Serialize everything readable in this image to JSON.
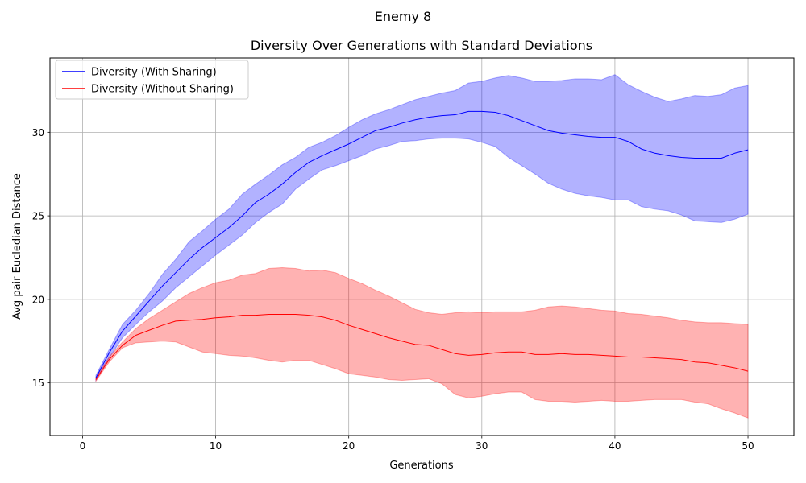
{
  "chart_data": {
    "type": "line",
    "suptitle": "Enemy 8",
    "title": "Diversity Over Generations with Standard Deviations",
    "xlabel": "Generations",
    "ylabel": "Avg pair Eucledian Distance",
    "xlim": [
      -2.45,
      53.45
    ],
    "ylim": [
      11.85,
      34.45
    ],
    "xticks": [
      0,
      10,
      20,
      30,
      40,
      50
    ],
    "yticks": [
      15,
      20,
      25,
      30
    ],
    "grid": true,
    "legend_position": "top-left",
    "x": [
      1,
      2,
      3,
      4,
      5,
      6,
      7,
      8,
      9,
      10,
      11,
      12,
      13,
      14,
      15,
      16,
      17,
      18,
      19,
      20,
      21,
      22,
      23,
      24,
      25,
      26,
      27,
      28,
      29,
      30,
      31,
      32,
      33,
      34,
      35,
      36,
      37,
      38,
      39,
      40,
      41,
      42,
      43,
      44,
      45,
      46,
      47,
      48,
      49,
      50
    ],
    "series": [
      {
        "name": "Diversity (With Sharing)",
        "color": "#0000ff",
        "fill_color": "#0000ff",
        "fill_opacity": 0.3,
        "mean": [
          15.3,
          16.8,
          18.1,
          19.0,
          19.9,
          20.8,
          21.6,
          22.4,
          23.1,
          23.7,
          24.3,
          25.0,
          25.8,
          26.3,
          26.9,
          27.6,
          28.2,
          28.6,
          28.95,
          29.3,
          29.7,
          30.1,
          30.3,
          30.55,
          30.75,
          30.9,
          31.0,
          31.05,
          31.25,
          31.25,
          31.2,
          31.0,
          30.7,
          30.4,
          30.1,
          29.95,
          29.85,
          29.75,
          29.7,
          29.7,
          29.45,
          29.0,
          28.75,
          28.6,
          28.5,
          28.45,
          28.45,
          28.45,
          28.75,
          28.95
        ],
        "upper": [
          15.45,
          17.0,
          18.5,
          19.35,
          20.35,
          21.5,
          22.4,
          23.45,
          24.1,
          24.8,
          25.4,
          26.3,
          26.9,
          27.45,
          28.05,
          28.5,
          29.1,
          29.4,
          29.8,
          30.3,
          30.75,
          31.1,
          31.35,
          31.65,
          31.95,
          32.15,
          32.35,
          32.5,
          32.95,
          33.05,
          33.25,
          33.4,
          33.25,
          33.05,
          33.05,
          33.1,
          33.2,
          33.2,
          33.15,
          33.45,
          32.85,
          32.45,
          32.1,
          31.85,
          32.0,
          32.2,
          32.15,
          32.25,
          32.65,
          32.8
        ],
        "lower": [
          15.15,
          16.5,
          17.7,
          18.5,
          19.25,
          19.9,
          20.7,
          21.35,
          22.0,
          22.65,
          23.25,
          23.85,
          24.6,
          25.2,
          25.7,
          26.6,
          27.2,
          27.75,
          28.0,
          28.3,
          28.6,
          29.0,
          29.2,
          29.45,
          29.5,
          29.6,
          29.65,
          29.65,
          29.6,
          29.4,
          29.15,
          28.5,
          28.0,
          27.5,
          26.95,
          26.6,
          26.35,
          26.2,
          26.1,
          25.95,
          25.95,
          25.55,
          25.4,
          25.3,
          25.05,
          24.7,
          24.65,
          24.6,
          24.8,
          25.1
        ]
      },
      {
        "name": "Diversity (Without Sharing)",
        "color": "#ff0000",
        "fill_color": "#ff0000",
        "fill_opacity": 0.3,
        "mean": [
          15.2,
          16.4,
          17.25,
          17.85,
          18.15,
          18.45,
          18.7,
          18.75,
          18.8,
          18.9,
          18.95,
          19.05,
          19.05,
          19.1,
          19.1,
          19.1,
          19.05,
          18.95,
          18.75,
          18.45,
          18.2,
          17.95,
          17.7,
          17.5,
          17.3,
          17.25,
          17.0,
          16.75,
          16.65,
          16.7,
          16.8,
          16.85,
          16.85,
          16.7,
          16.7,
          16.75,
          16.7,
          16.7,
          16.65,
          16.6,
          16.55,
          16.55,
          16.5,
          16.45,
          16.4,
          16.25,
          16.2,
          16.05,
          15.9,
          15.7
        ],
        "upper": [
          15.3,
          16.55,
          17.45,
          18.25,
          18.85,
          19.35,
          19.85,
          20.35,
          20.7,
          21.0,
          21.15,
          21.45,
          21.55,
          21.85,
          21.9,
          21.85,
          21.7,
          21.75,
          21.6,
          21.25,
          20.95,
          20.55,
          20.2,
          19.8,
          19.4,
          19.2,
          19.1,
          19.2,
          19.25,
          19.2,
          19.25,
          19.25,
          19.25,
          19.35,
          19.55,
          19.6,
          19.55,
          19.45,
          19.35,
          19.3,
          19.15,
          19.1,
          19.0,
          18.9,
          18.75,
          18.65,
          18.6,
          18.6,
          18.55,
          18.5
        ],
        "lower": [
          15.1,
          16.25,
          17.1,
          17.4,
          17.45,
          17.5,
          17.45,
          17.15,
          16.85,
          16.75,
          16.65,
          16.6,
          16.5,
          16.35,
          16.25,
          16.35,
          16.35,
          16.1,
          15.85,
          15.55,
          15.45,
          15.35,
          15.2,
          15.15,
          15.2,
          15.25,
          14.95,
          14.3,
          14.1,
          14.2,
          14.35,
          14.45,
          14.45,
          14.0,
          13.9,
          13.9,
          13.85,
          13.9,
          13.95,
          13.9,
          13.9,
          13.95,
          14.0,
          14.0,
          14.0,
          13.85,
          13.75,
          13.45,
          13.2,
          12.9
        ]
      }
    ]
  }
}
